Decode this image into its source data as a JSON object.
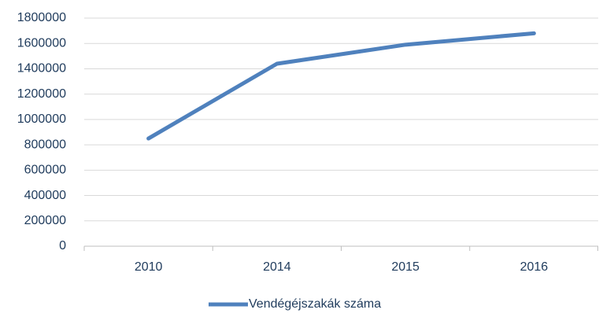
{
  "chart_data": {
    "type": "line",
    "categories": [
      "2010",
      "2014",
      "2015",
      "2016"
    ],
    "series": [
      {
        "name": "Vendégéjszakák száma",
        "color": "#4f81bd",
        "values": [
          850000,
          1440000,
          1590000,
          1680000
        ]
      }
    ],
    "ylim": [
      0,
      1800000
    ],
    "yticks": [
      0,
      200000,
      400000,
      600000,
      800000,
      1000000,
      1200000,
      1400000,
      1600000,
      1800000
    ],
    "grid": true,
    "legend": "bottom"
  }
}
